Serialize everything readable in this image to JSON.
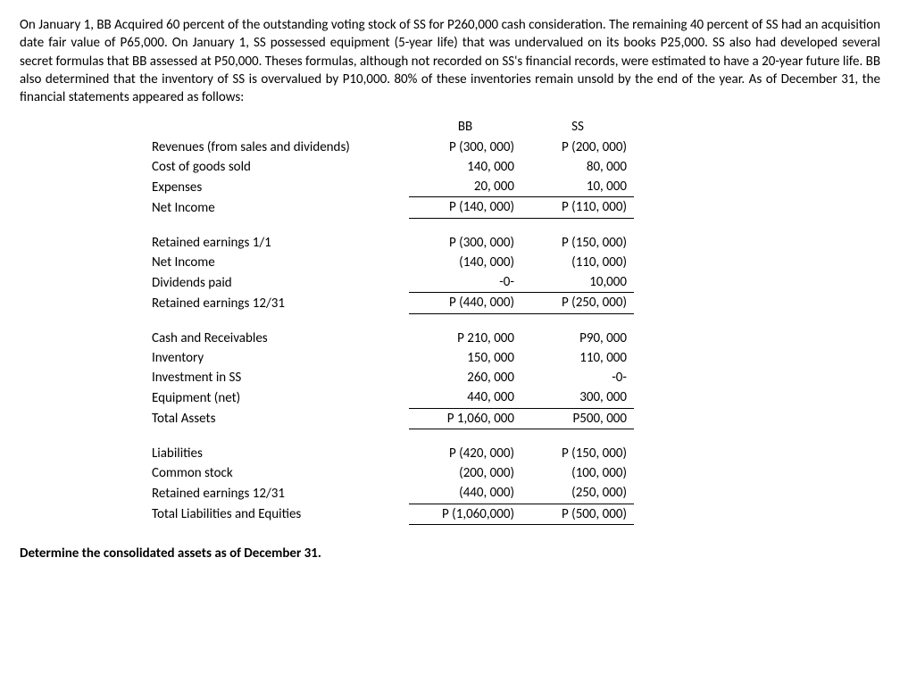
{
  "intro": "On January 1, BB Acquired 60 percent of the outstanding voting stock of SS for P260,000 cash consideration. The remaining 40 percent of SS had an acquisition date fair value of P65,000. On January 1, SS possessed equipment (5-year life) that was undervalued on its books P25,000. SS also had developed several secret formulas that BB assessed at P50,000. Theses formulas, although not recorded on SS's financial records, were estimated to have a 20-year future life. BB also determined that the inventory of SS is overvalued by P10,000.  80% of these inventories remain unsold by the end of the year.  As of December 31, the financial statements appeared as follows:",
  "headers": {
    "bb": "BB",
    "ss": "SS"
  },
  "income": {
    "revenues": {
      "label": "Revenues (from sales and dividends)",
      "bb": "P (300, 000)",
      "ss": "P (200, 000)"
    },
    "cogs": {
      "label": "Cost of goods sold",
      "bb": "140, 000",
      "ss": "80, 000"
    },
    "expenses": {
      "label": "Expenses",
      "bb": "20, 000",
      "ss": "10, 000"
    },
    "net_income": {
      "label": "Net Income",
      "bb": "P (140, 000)",
      "ss": "P (110, 000)"
    }
  },
  "retained": {
    "re_open": {
      "label": "Retained earnings 1/1",
      "bb": "P (300, 000)",
      "ss": "P (150, 000)"
    },
    "ni": {
      "label": "Net Income",
      "bb": "(140, 000)",
      "ss": "(110, 000)"
    },
    "div": {
      "label": "Dividends paid",
      "bb": "-0-",
      "ss": "10,000"
    },
    "re_close": {
      "label": "Retained earnings 12/31",
      "bb": "P (440, 000)",
      "ss": "P (250, 000)"
    }
  },
  "assets": {
    "cash": {
      "label": "Cash and Receivables",
      "bb": "P 210, 000",
      "ss": "P90, 000"
    },
    "inv": {
      "label": "Inventory",
      "bb": "150, 000",
      "ss": "110, 000"
    },
    "invest": {
      "label": "Investment in SS",
      "bb": "260, 000",
      "ss": "-0-"
    },
    "equip": {
      "label": "Equipment (net)",
      "bb": "440, 000",
      "ss": "300, 000"
    },
    "total": {
      "label": "Total Assets",
      "bb": "P 1,060, 000",
      "ss": "P500, 000"
    }
  },
  "liab": {
    "liab": {
      "label": "Liabilities",
      "bb": "P (420, 000)",
      "ss": "P (150, 000)"
    },
    "cs": {
      "label": "Common stock",
      "bb": "(200, 000)",
      "ss": "(100, 000)"
    },
    "re": {
      "label": "Retained earnings 12/31",
      "bb": "(440, 000)",
      "ss": "(250, 000)"
    },
    "total": {
      "label": "Total Liabilities and Equities",
      "bb": "P (1,060,000)",
      "ss": "P (500, 000)"
    }
  },
  "question": "Determine the consolidated assets as of December 31."
}
